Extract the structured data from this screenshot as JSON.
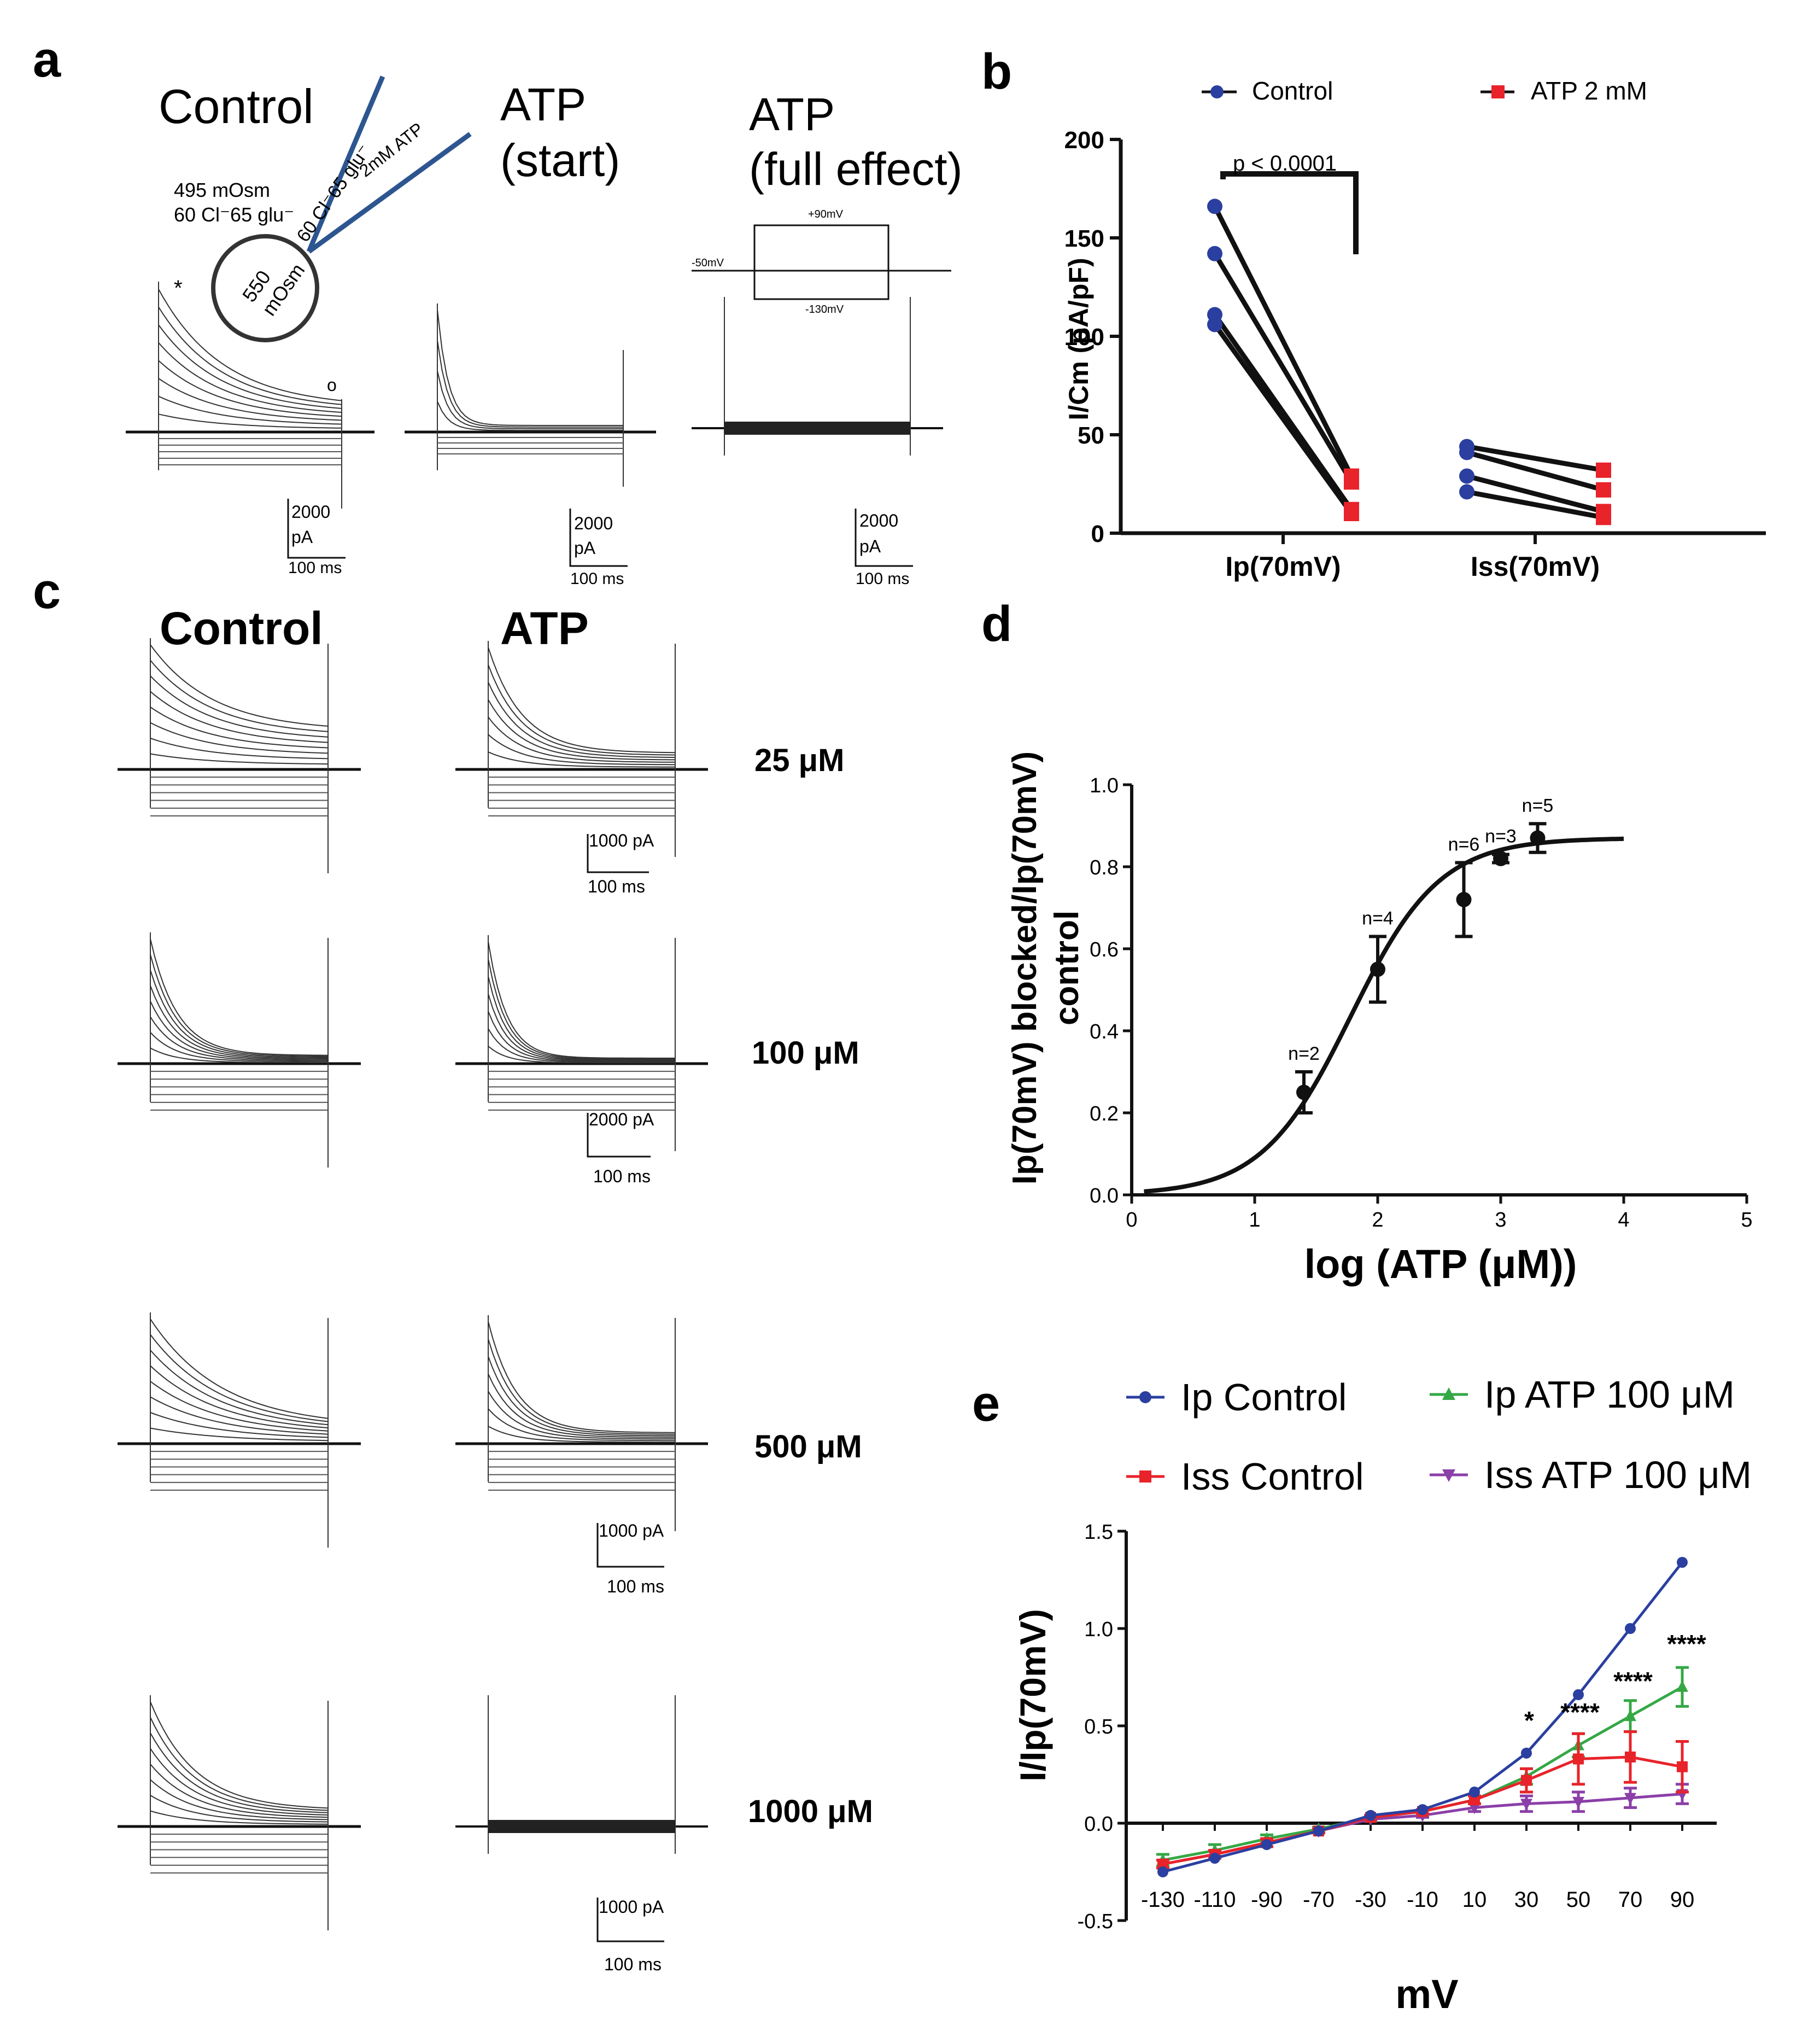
{
  "colors": {
    "navy": "#2b3fa0",
    "red": "#e8232a",
    "green": "#35a845",
    "purple": "#8b3fa8",
    "pipette": "#2d5590",
    "black": "#111111"
  },
  "panel_a": {
    "letter": "a",
    "titles": {
      "control": "Control",
      "atp_start_1": "ATP",
      "atp_start_2": "(start)",
      "atp_full_1": "ATP",
      "atp_full_2": "(full effect)"
    },
    "bath_label_1": "495 mOsm",
    "bath_label_2": "60 Cl⁻65 glu⁻",
    "pipette_label_1": "60 Cl⁻65 glu⁻",
    "pipette_label_2": "2mM ATP",
    "cell_label_1": "550",
    "cell_label_2": "mOsm",
    "asterisk": "*",
    "circle_marker": "o",
    "protocol": {
      "top": "+90mV",
      "left": "-50mV",
      "bottom": "-130mV"
    },
    "scalebar": {
      "amp_value": "2000",
      "amp_unit": "pA",
      "time": "100 ms"
    }
  },
  "panel_b": {
    "letter": "b",
    "legend": [
      "Control",
      "ATP 2 mM"
    ],
    "pvalue": "p < 0.0001",
    "chart_data": {
      "type": "scatter",
      "title": "",
      "xlabel": "",
      "ylabel": "I/Cm (pA/pF)",
      "categories": [
        "Ip(70mV)",
        "Iss(70mV)"
      ],
      "ylim": [
        0,
        200
      ],
      "yticks": [
        0,
        50,
        100,
        150,
        200
      ],
      "series": [
        {
          "name": "Control",
          "values": [
            [
              166,
              142,
              111,
              106
            ],
            [
              44,
              41,
              29,
              21
            ]
          ]
        },
        {
          "name": "ATP 2 mM",
          "values": [
            [
              29,
              26,
              12,
              10
            ],
            [
              32,
              22,
              11,
              8
            ]
          ]
        }
      ]
    }
  },
  "panel_c": {
    "letter": "c",
    "titles": {
      "control": "Control",
      "atp": "ATP"
    },
    "rows": [
      {
        "conc": "25 μM",
        "scale_amp": "1000 pA",
        "scale_time": "100 ms"
      },
      {
        "conc": "100 μM",
        "scale_amp": "2000 pA",
        "scale_time": "100 ms"
      },
      {
        "conc": "500 μM",
        "scale_amp": "1000 pA",
        "scale_time": "100 ms"
      },
      {
        "conc": "1000 μM",
        "scale_amp": "1000 pA",
        "scale_time": "100 ms"
      }
    ]
  },
  "panel_d": {
    "letter": "d",
    "chart_data": {
      "type": "scatter",
      "title": "",
      "xlabel": "log (ATP (μM))",
      "ylabel_1": "Ip(70mV) blocked/Ip(70mV)",
      "ylabel_2": "control",
      "xlim": [
        0,
        5
      ],
      "ylim": [
        0,
        1.0
      ],
      "xticks": [
        "0",
        "1",
        "2",
        "3",
        "4",
        "5"
      ],
      "yticks": [
        "0.0",
        "0.2",
        "0.4",
        "0.6",
        "0.8",
        "1.0"
      ],
      "x": [
        1.4,
        2.0,
        2.7,
        3.0,
        3.3
      ],
      "y": [
        0.25,
        0.55,
        0.72,
        0.82,
        0.87
      ],
      "err": [
        0.05,
        0.08,
        0.09,
        0.01,
        0.035
      ],
      "n_labels": [
        "n=2",
        "n=4",
        "n=6",
        "n=3",
        "n=5"
      ],
      "fit": {
        "bottom": 0.0,
        "top": 0.87,
        "logIC50": 1.78,
        "hill": 1.2,
        "x_range": [
          0.1,
          4.0
        ]
      }
    }
  },
  "panel_e": {
    "letter": "e",
    "chart_data": {
      "type": "line",
      "title": "",
      "xlabel": "mV",
      "ylabel": "I/Ip(70mV)",
      "categories": [
        "-130",
        "-110",
        "-90",
        "-70",
        "-30",
        "-10",
        "10",
        "30",
        "50",
        "70",
        "90"
      ],
      "ylim": [
        -0.5,
        1.5
      ],
      "yticks": [
        "-0.5",
        "0.0",
        "0.5",
        "1.0",
        "1.5"
      ],
      "series": [
        {
          "name": "Ip Control",
          "color": "#2b3fa0",
          "values": [
            -0.25,
            -0.18,
            -0.11,
            -0.04,
            0.04,
            0.07,
            0.16,
            0.36,
            0.66,
            1.0,
            1.34
          ],
          "err": [
            0,
            0,
            0,
            0,
            0,
            0,
            0,
            0,
            0,
            0,
            0
          ]
        },
        {
          "name": "Iss Control",
          "color": "#e8232a",
          "values": [
            -0.21,
            -0.16,
            -0.1,
            -0.04,
            0.03,
            0.06,
            0.12,
            0.22,
            0.33,
            0.34,
            0.29
          ],
          "err": [
            0.02,
            0.02,
            0.02,
            0.01,
            0.01,
            0.01,
            0.02,
            0.06,
            0.13,
            0.13,
            0.13
          ]
        },
        {
          "name": "Ip ATP 100 μM",
          "color": "#35a845",
          "values": [
            -0.19,
            -0.14,
            -0.08,
            -0.03,
            0.03,
            0.06,
            0.12,
            0.24,
            0.4,
            0.55,
            0.7
          ],
          "err": [
            0.03,
            0.03,
            0.02,
            0.01,
            0.01,
            0.01,
            0.02,
            0.04,
            0.06,
            0.08,
            0.1
          ]
        },
        {
          "name": "Iss ATP 100 μM",
          "color": "#8b3fa8",
          "values": [
            -0.21,
            -0.16,
            -0.1,
            -0.04,
            0.02,
            0.04,
            0.08,
            0.1,
            0.11,
            0.13,
            0.15
          ],
          "err": [
            0.02,
            0.02,
            0.02,
            0.01,
            0.01,
            0.01,
            0.02,
            0.04,
            0.05,
            0.05,
            0.05
          ]
        }
      ],
      "significance": [
        {
          "category": "30",
          "label": "*"
        },
        {
          "category": "50",
          "label": "****"
        },
        {
          "category": "70",
          "label": "****"
        },
        {
          "category": "90",
          "label": "****"
        }
      ]
    }
  }
}
